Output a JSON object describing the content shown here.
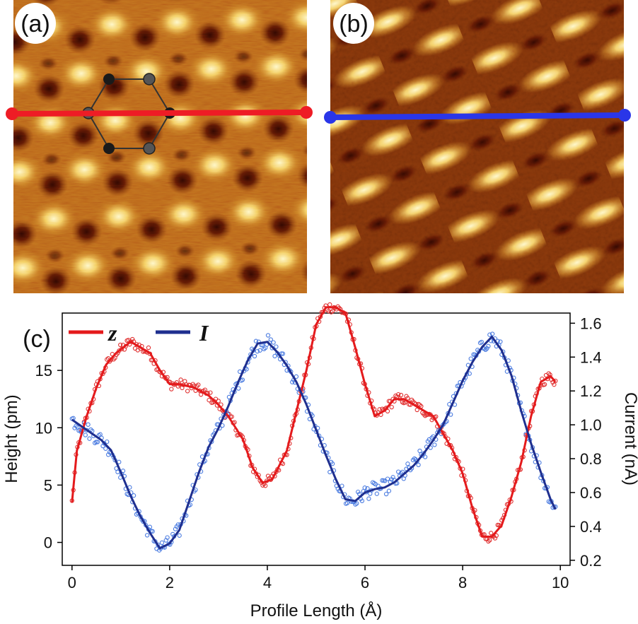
{
  "panels": {
    "a": {
      "label": "(a)"
    },
    "b": {
      "label": "(b)"
    },
    "c": {
      "label": "(c)"
    }
  },
  "colors": {
    "z_line": "#e41a1c",
    "z_points": "#e03030",
    "I_line": "#1f2f8f",
    "I_points": "#4a7be0",
    "profile_a": "#ee1c25",
    "profile_b": "#2a36e8",
    "hexagon_edge": "#333333",
    "atom_dark": "#1a1a1a",
    "atom_grey": "#555555"
  },
  "chart_data": {
    "type": "line",
    "xlabel": "Profile Length (Å)",
    "ylabel": "Height (pm)",
    "y2label": "Current (nA)",
    "xlim": [
      -0.2,
      10.2
    ],
    "ylim": [
      -2,
      20
    ],
    "y2lim": [
      0.17,
      1.66
    ],
    "xticks": [
      0,
      2,
      4,
      6,
      8,
      10
    ],
    "yticks": [
      0,
      5,
      10,
      15
    ],
    "y2ticks": [
      0.2,
      0.4,
      0.6,
      0.8,
      1.0,
      1.2,
      1.4,
      1.6
    ],
    "xtick_labels": [
      "0",
      "2",
      "4",
      "6",
      "8",
      "10"
    ],
    "ytick_labels": [
      "0",
      "5",
      "10",
      "15"
    ],
    "y2tick_labels": [
      "0.2",
      "0.4",
      "0.6",
      "0.8",
      "1.0",
      "1.2",
      "1.4",
      "1.6"
    ],
    "legend": [
      "z",
      "I"
    ],
    "series": [
      {
        "name": "z",
        "axis": "left",
        "x": [
          0.0,
          0.1,
          0.3,
          0.5,
          0.7,
          0.9,
          1.2,
          1.4,
          1.6,
          1.8,
          2.0,
          2.2,
          2.5,
          2.8,
          3.0,
          3.2,
          3.5,
          3.7,
          3.9,
          4.1,
          4.4,
          4.6,
          4.8,
          5.0,
          5.2,
          5.4,
          5.6,
          5.8,
          6.0,
          6.2,
          6.4,
          6.6,
          6.8,
          7.0,
          7.2,
          7.4,
          7.6,
          7.8,
          8.0,
          8.2,
          8.4,
          8.6,
          8.8,
          9.0,
          9.2,
          9.4,
          9.6,
          9.8,
          9.9
        ],
        "values": [
          3.5,
          8.0,
          11.0,
          13.5,
          15.5,
          16.5,
          17.5,
          17.0,
          16.5,
          15.0,
          13.8,
          13.8,
          13.5,
          12.8,
          12.0,
          11.0,
          9.0,
          6.5,
          5.2,
          5.5,
          8.0,
          11.5,
          15.0,
          19.0,
          20.5,
          20.5,
          20.0,
          17.0,
          13.8,
          11.0,
          11.5,
          12.5,
          12.5,
          12.0,
          11.5,
          11.0,
          9.5,
          8.0,
          6.0,
          3.0,
          0.5,
          0.5,
          1.5,
          4.0,
          7.0,
          11.0,
          14.0,
          14.5,
          14.0
        ]
      },
      {
        "name": "I",
        "axis": "right",
        "x": [
          0.0,
          0.2,
          0.4,
          0.6,
          0.8,
          1.0,
          1.2,
          1.4,
          1.6,
          1.8,
          2.0,
          2.2,
          2.4,
          2.6,
          2.8,
          3.0,
          3.2,
          3.4,
          3.6,
          3.8,
          4.0,
          4.2,
          4.4,
          4.6,
          4.8,
          5.0,
          5.2,
          5.4,
          5.6,
          5.8,
          6.0,
          6.2,
          6.4,
          6.6,
          6.8,
          7.0,
          7.2,
          7.4,
          7.6,
          7.8,
          8.0,
          8.2,
          8.4,
          8.6,
          8.8,
          9.0,
          9.2,
          9.4,
          9.6,
          9.8,
          9.9
        ],
        "values": [
          1.03,
          0.99,
          0.95,
          0.91,
          0.85,
          0.72,
          0.58,
          0.46,
          0.36,
          0.27,
          0.3,
          0.38,
          0.55,
          0.72,
          0.87,
          0.98,
          1.11,
          1.25,
          1.38,
          1.48,
          1.49,
          1.43,
          1.35,
          1.25,
          1.12,
          0.97,
          0.82,
          0.68,
          0.56,
          0.55,
          0.6,
          0.62,
          0.63,
          0.66,
          0.71,
          0.76,
          0.83,
          0.91,
          1.0,
          1.13,
          1.26,
          1.37,
          1.46,
          1.52,
          1.44,
          1.29,
          1.08,
          0.89,
          0.72,
          0.56,
          0.5
        ]
      }
    ]
  }
}
